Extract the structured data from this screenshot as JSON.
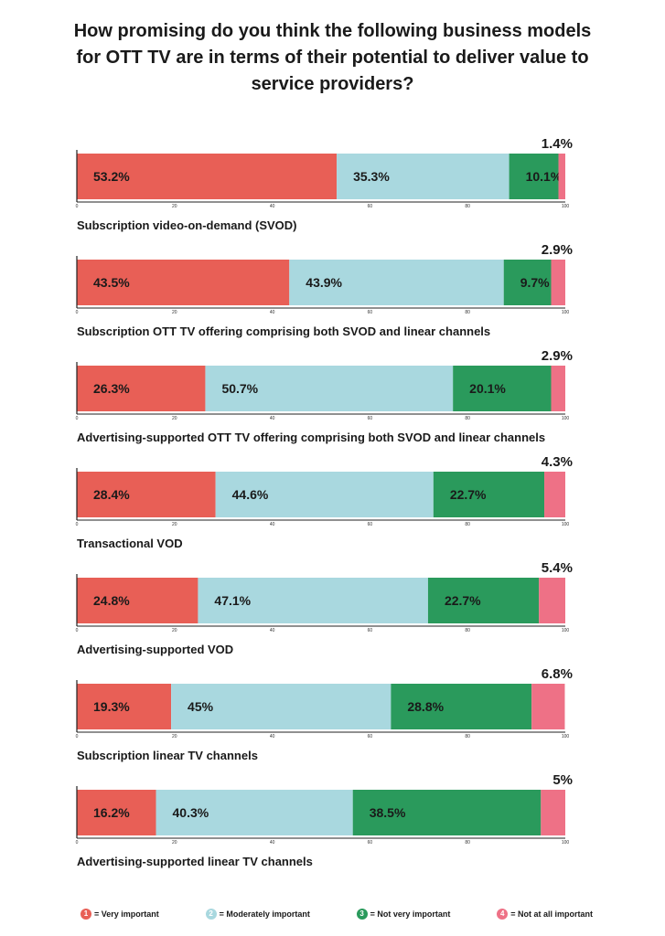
{
  "title_lines": [
    "How promising do you think the following business models",
    "for OTT TV are in terms of their potential to deliver value to",
    "service providers?"
  ],
  "colors": {
    "1": "#e85f56",
    "2": "#a9d8df",
    "3": "#2a9a5c",
    "4": "#ee7186"
  },
  "legend": [
    {
      "key": "1",
      "label": "= Very important"
    },
    {
      "key": "2",
      "label": "= Moderately important"
    },
    {
      "key": "3",
      "label": "= Not very important"
    },
    {
      "key": "4",
      "label": "= Not at all important"
    }
  ],
  "chart_data": {
    "type": "bar",
    "orientation": "horizontal",
    "stacked": true,
    "xlim": [
      0,
      100
    ],
    "ticks": [
      "0",
      "20",
      "40",
      "60",
      "80",
      "100"
    ],
    "categories": [
      "Subscription video-on-demand (SVOD)",
      "Subscription OTT TV offering comprising both SVOD and linear channels",
      "Advertising-supported OTT TV offering comprising both SVOD and linear channels",
      "Transactional VOD",
      "Advertising-supported VOD",
      "Subscription linear TV channels",
      "Advertising-supported linear TV channels"
    ],
    "series": [
      {
        "name": "Very important",
        "values": [
          53.2,
          43.5,
          26.3,
          28.4,
          24.8,
          19.3,
          16.2
        ],
        "labels": [
          "53.2%",
          "43.5%",
          "26.3%",
          "28.4%",
          "24.8%",
          "19.3%",
          "16.2%"
        ]
      },
      {
        "name": "Moderately important",
        "values": [
          35.3,
          43.9,
          50.7,
          44.6,
          47.1,
          45,
          40.3
        ],
        "labels": [
          "35.3%",
          "43.9%",
          "50.7%",
          "44.6%",
          "47.1%",
          "45%",
          "40.3%"
        ]
      },
      {
        "name": "Not very important",
        "values": [
          10.1,
          9.7,
          20.1,
          22.7,
          22.7,
          28.8,
          38.5
        ],
        "labels": [
          "10.1%",
          "9.7%",
          "20.1%",
          "22.7%",
          "22.7%",
          "28.8%",
          "38.5%"
        ]
      },
      {
        "name": "Not at all important",
        "values": [
          1.4,
          2.9,
          2.9,
          4.3,
          5.4,
          6.8,
          5
        ],
        "labels": [
          "1.4%",
          "2.9%",
          "2.9%",
          "4.3%",
          "5.4%",
          "6.8%",
          "5%"
        ]
      }
    ]
  }
}
